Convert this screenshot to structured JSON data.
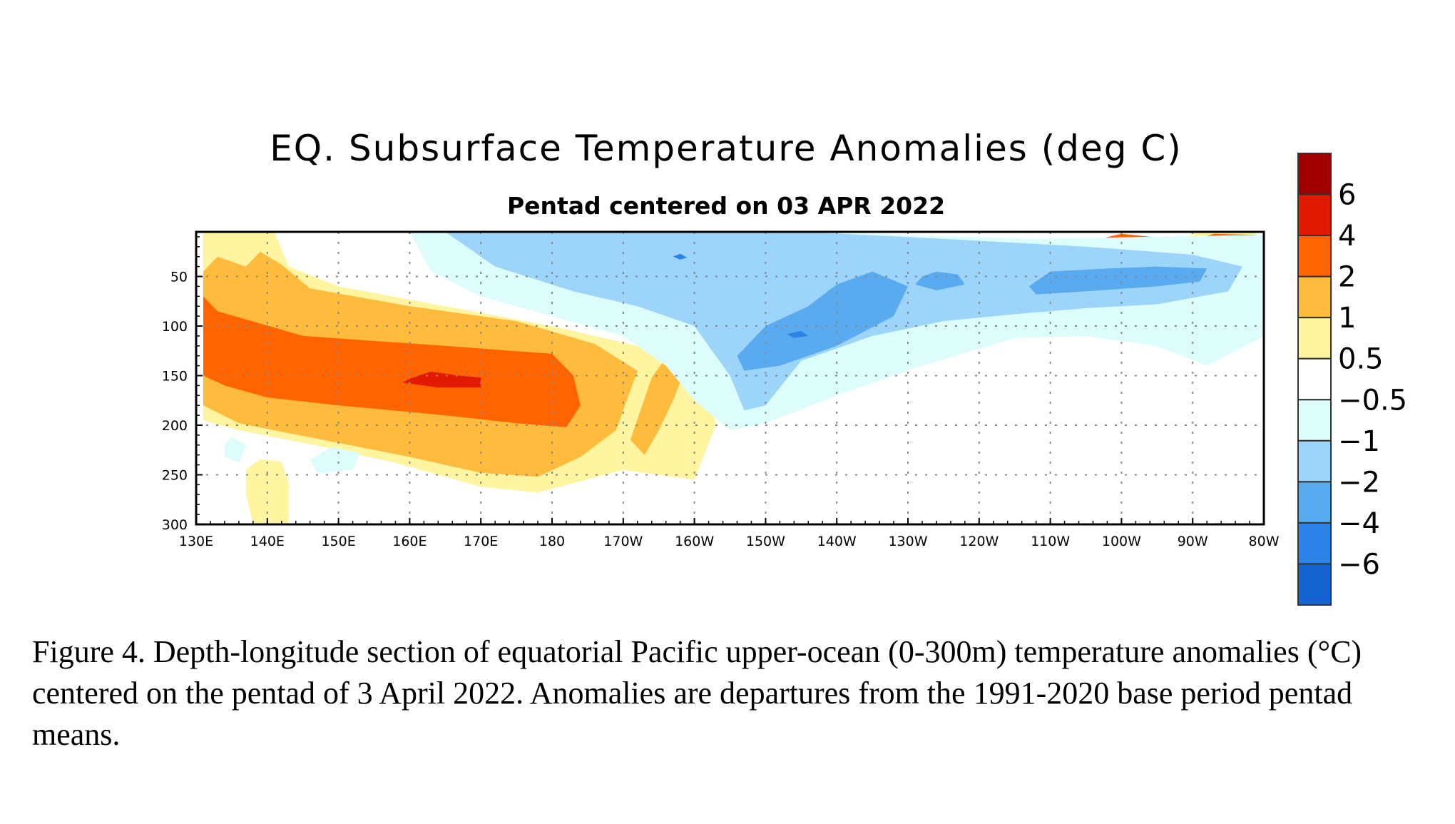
{
  "chart_data": {
    "type": "heatmap",
    "title": "EQ. Subsurface Temperature Anomalies (deg C)",
    "subtitle": "Pentad centered on 03 APR 2022",
    "xlabel": "",
    "ylabel": "",
    "xlim": [
      130,
      280
    ],
    "ylim": [
      300,
      5
    ],
    "x_ticks": [
      {
        "value": 130,
        "label": "130E"
      },
      {
        "value": 140,
        "label": "140E"
      },
      {
        "value": 150,
        "label": "150E"
      },
      {
        "value": 160,
        "label": "160E"
      },
      {
        "value": 170,
        "label": "170E"
      },
      {
        "value": 180,
        "label": "180"
      },
      {
        "value": 190,
        "label": "170W"
      },
      {
        "value": 200,
        "label": "160W"
      },
      {
        "value": 210,
        "label": "150W"
      },
      {
        "value": 220,
        "label": "140W"
      },
      {
        "value": 230,
        "label": "130W"
      },
      {
        "value": 240,
        "label": "120W"
      },
      {
        "value": 250,
        "label": "110W"
      },
      {
        "value": 260,
        "label": "100W"
      },
      {
        "value": 270,
        "label": "90W"
      },
      {
        "value": 280,
        "label": "80W"
      }
    ],
    "y_ticks": [
      {
        "value": 50,
        "label": "50"
      },
      {
        "value": 100,
        "label": "100"
      },
      {
        "value": 150,
        "label": "150"
      },
      {
        "value": 200,
        "label": "200"
      },
      {
        "value": 250,
        "label": "250"
      },
      {
        "value": 300,
        "label": "300"
      }
    ],
    "grid": true,
    "colorbar": {
      "labels": [
        "6",
        "4",
        "2",
        "1",
        "0.5",
        "−0.5",
        "−1",
        "−2",
        "−4",
        "−6"
      ],
      "colors": [
        "#a00000",
        "#e41a00",
        "#ff6400",
        "#ffbb3c",
        "#fff5a0",
        "#ffffff",
        "#ddfcfc",
        "#9dd4fa",
        "#5aaaf0",
        "#2d82e8",
        "#1464d2"
      ]
    },
    "regions": [
      {
        "level": "0.5 to 1",
        "points": [
          [
            131,
            5
          ],
          [
            141,
            5
          ],
          [
            143,
            40
          ],
          [
            150,
            60
          ],
          [
            165,
            80
          ],
          [
            180,
            100
          ],
          [
            192,
            120
          ],
          [
            202,
            140
          ],
          [
            203,
            200
          ],
          [
            200,
            255
          ],
          [
            190,
            245
          ],
          [
            178,
            268
          ],
          [
            170,
            262
          ],
          [
            158,
            238
          ],
          [
            148,
            222
          ],
          [
            136,
            205
          ],
          [
            131,
            195
          ]
        ]
      },
      {
        "level": "0.5 to 1",
        "points": [
          [
            137,
            245
          ],
          [
            139,
            234
          ],
          [
            142,
            237
          ],
          [
            143,
            258
          ],
          [
            143,
            300
          ],
          [
            138,
            300
          ],
          [
            137,
            270
          ]
        ]
      },
      {
        "level": "1 to 2",
        "points": [
          [
            131,
            45
          ],
          [
            133,
            30
          ],
          [
            137,
            40
          ],
          [
            139,
            25
          ],
          [
            142,
            38
          ],
          [
            146,
            62
          ],
          [
            160,
            80
          ],
          [
            175,
            95
          ],
          [
            186,
            118
          ],
          [
            192,
            145
          ],
          [
            189,
            205
          ],
          [
            184,
            232
          ],
          [
            178,
            252
          ],
          [
            170,
            248
          ],
          [
            160,
            232
          ],
          [
            148,
            215
          ],
          [
            136,
            198
          ],
          [
            131,
            180
          ]
        ]
      },
      {
        "level": "1 to 2",
        "points": [
          [
            194,
            152
          ],
          [
            196,
            132
          ],
          [
            199,
            138
          ],
          [
            197,
            175
          ],
          [
            195,
            205
          ],
          [
            193,
            230
          ],
          [
            191,
            215
          ]
        ]
      },
      {
        "level": "2 to 4",
        "points": [
          [
            131,
            70
          ],
          [
            133,
            85
          ],
          [
            145,
            110
          ],
          [
            165,
            120
          ],
          [
            180,
            128
          ],
          [
            183,
            150
          ],
          [
            184,
            180
          ],
          [
            182,
            202
          ],
          [
            175,
            198
          ],
          [
            165,
            190
          ],
          [
            150,
            180
          ],
          [
            140,
            172
          ],
          [
            134,
            160
          ],
          [
            131,
            150
          ]
        ]
      },
      {
        "level": "4 to 6",
        "points": [
          [
            160,
            153
          ],
          [
            163,
            146
          ],
          [
            167,
            150
          ],
          [
            170,
            152
          ],
          [
            170,
            162
          ],
          [
            164,
            162
          ],
          [
            159,
            157
          ]
        ]
      },
      {
        "level": "2 to 4",
        "points": [
          [
            257,
            12
          ],
          [
            260,
            7
          ],
          [
            264,
            10
          ],
          [
            266,
            20
          ],
          [
            262,
            24
          ],
          [
            258,
            20
          ]
        ]
      },
      {
        "level": "4 to 6",
        "points": [
          [
            259,
            12
          ],
          [
            262,
            11
          ],
          [
            263,
            17
          ],
          [
            260,
            18
          ]
        ]
      },
      {
        "level": "0.5 to 1",
        "points": [
          [
            269,
            10
          ],
          [
            271,
            5
          ],
          [
            279,
            5
          ],
          [
            278,
            25
          ],
          [
            272,
            22
          ]
        ]
      },
      {
        "level": "2 to 4",
        "points": [
          [
            270,
            13
          ],
          [
            273,
            7
          ],
          [
            279,
            8
          ],
          [
            278,
            20
          ],
          [
            272,
            18
          ]
        ]
      },
      {
        "level": "4 to 6",
        "points": [
          [
            277,
            12
          ],
          [
            279,
            12
          ],
          [
            279,
            17
          ],
          [
            276,
            17
          ]
        ]
      },
      {
        "level": "-1 to -0.5",
        "points": [
          [
            160,
            5
          ],
          [
            215,
            5
          ],
          [
            248,
            12
          ],
          [
            280,
            8
          ],
          [
            280,
            110
          ],
          [
            272,
            140
          ],
          [
            265,
            120
          ],
          [
            255,
            110
          ],
          [
            245,
            112
          ],
          [
            232,
            140
          ],
          [
            220,
            170
          ],
          [
            210,
            198
          ],
          [
            205,
            205
          ],
          [
            200,
            175
          ],
          [
            196,
            140
          ],
          [
            190,
            110
          ],
          [
            180,
            90
          ],
          [
            170,
            70
          ],
          [
            163,
            45
          ]
        ]
      },
      {
        "level": "-1 to -0.5",
        "points": [
          [
            146,
            235
          ],
          [
            149,
            222
          ],
          [
            153,
            228
          ],
          [
            152,
            245
          ],
          [
            147,
            248
          ]
        ]
      },
      {
        "level": "-1 to -0.5",
        "points": [
          [
            134,
            220
          ],
          [
            135,
            212
          ],
          [
            137,
            220
          ],
          [
            136,
            238
          ],
          [
            134,
            232
          ]
        ]
      },
      {
        "level": "-2 to -1",
        "points": [
          [
            165,
            5
          ],
          [
            215,
            5
          ],
          [
            235,
            12
          ],
          [
            255,
            20
          ],
          [
            270,
            28
          ],
          [
            277,
            40
          ],
          [
            275,
            65
          ],
          [
            265,
            78
          ],
          [
            255,
            82
          ],
          [
            245,
            88
          ],
          [
            235,
            95
          ],
          [
            225,
            110
          ],
          [
            215,
            135
          ],
          [
            210,
            180
          ],
          [
            207,
            185
          ],
          [
            205,
            150
          ],
          [
            200,
            100
          ],
          [
            192,
            80
          ],
          [
            183,
            65
          ],
          [
            172,
            40
          ]
        ]
      },
      {
        "level": "-4 to -2",
        "points": [
          [
            206,
            130
          ],
          [
            210,
            100
          ],
          [
            216,
            80
          ],
          [
            220,
            58
          ],
          [
            225,
            45
          ],
          [
            230,
            60
          ],
          [
            228,
            90
          ],
          [
            220,
            120
          ],
          [
            212,
            140
          ],
          [
            207,
            145
          ]
        ]
      },
      {
        "level": "-4 to -2",
        "points": [
          [
            232,
            50
          ],
          [
            234,
            45
          ],
          [
            237,
            48
          ],
          [
            238,
            58
          ],
          [
            234,
            64
          ],
          [
            231,
            58
          ]
        ]
      },
      {
        "level": "-4 to -2",
        "points": [
          [
            247,
            60
          ],
          [
            250,
            45
          ],
          [
            258,
            42
          ],
          [
            265,
            40
          ],
          [
            272,
            42
          ],
          [
            271,
            55
          ],
          [
            265,
            60
          ],
          [
            255,
            65
          ],
          [
            248,
            68
          ]
        ]
      },
      {
        "level": "-6 to -4",
        "points": [
          [
            213,
            108
          ],
          [
            215,
            105
          ],
          [
            216,
            110
          ],
          [
            214,
            112
          ]
        ]
      },
      {
        "level": "-6 to -4",
        "points": [
          [
            197,
            30
          ],
          [
            198,
            27
          ],
          [
            199,
            31
          ],
          [
            198,
            33
          ]
        ]
      }
    ]
  },
  "caption": "Figure 4. Depth-longitude section of equatorial Pacific upper-ocean (0-300m) temperature anomalies (°C) centered on the pentad of 3 April 2022. Anomalies are departures from the 1991-2020 base period pentad means."
}
